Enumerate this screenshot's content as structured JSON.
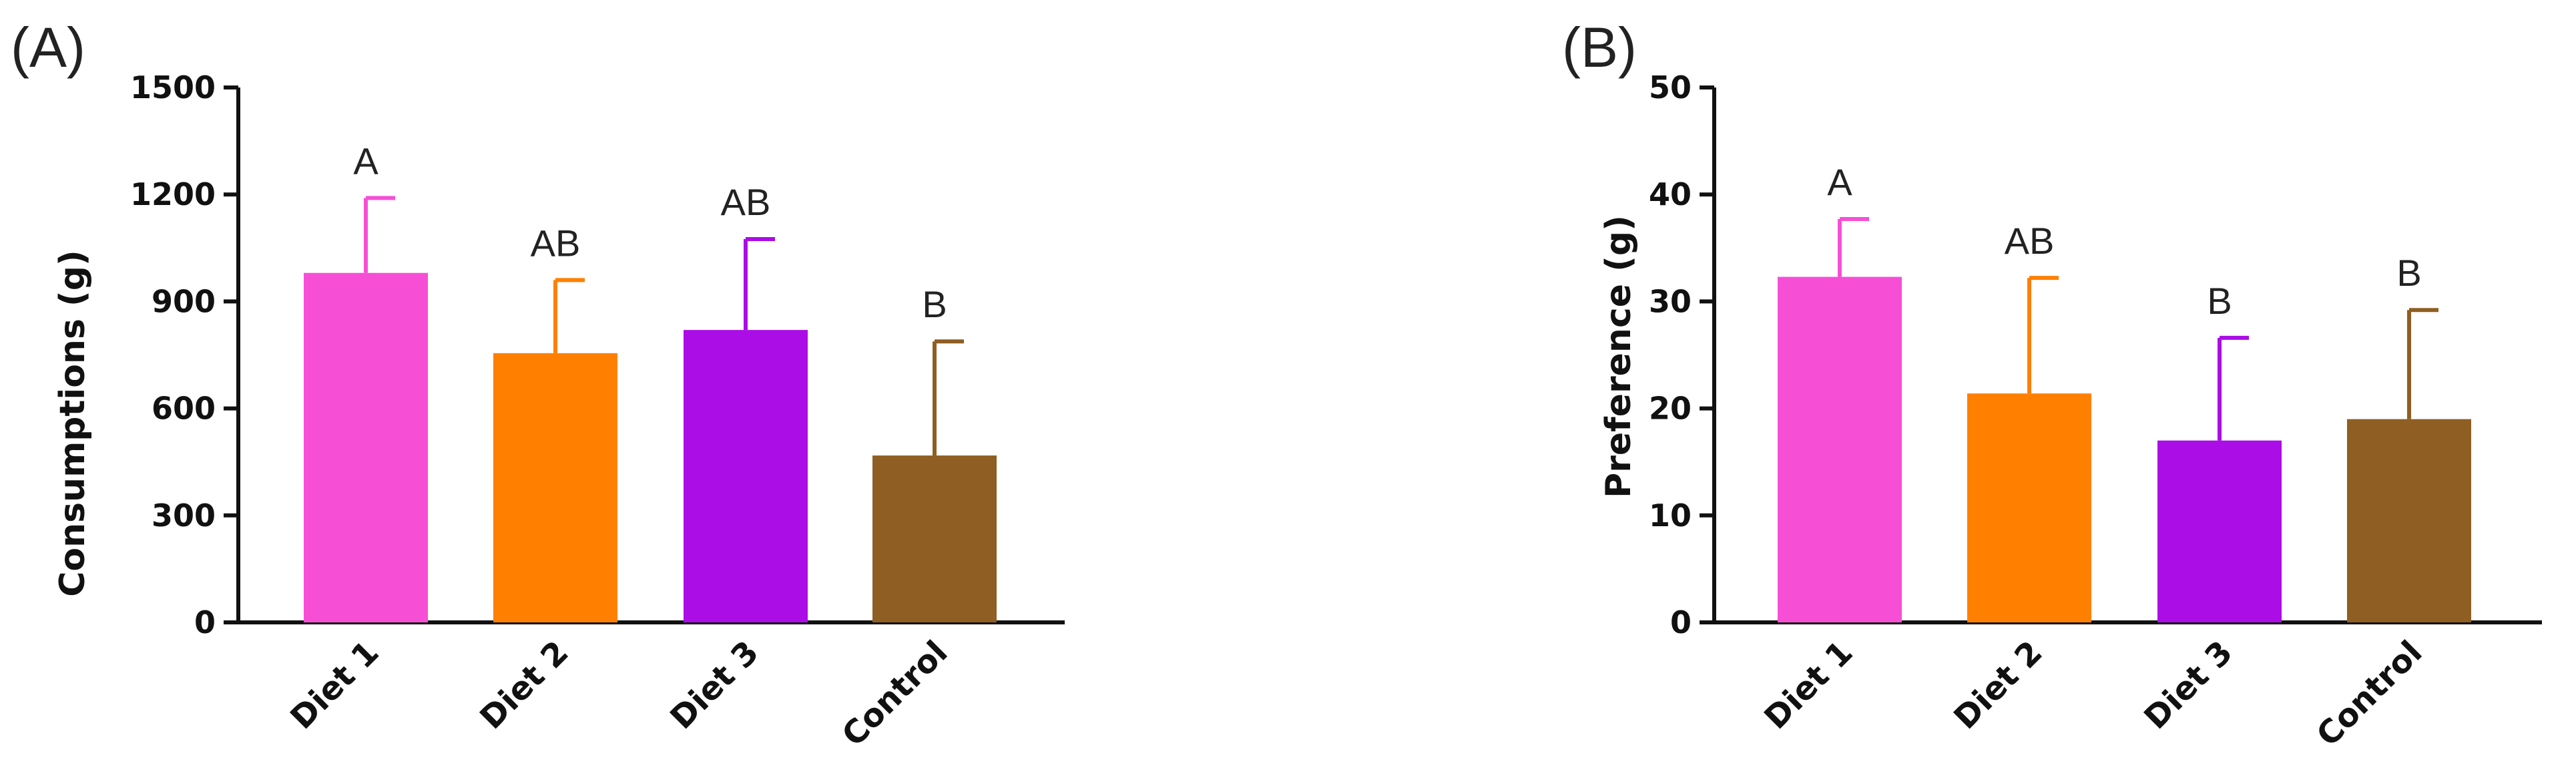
{
  "chart_data": [
    {
      "type": "bar",
      "panel_label": "(A)",
      "title": "",
      "xlabel": "",
      "ylabel": "Consumptions (g)",
      "ylim": [
        0,
        1500
      ],
      "yticks": [
        "0",
        "300",
        "600",
        "900",
        "1200",
        "1500"
      ],
      "categories": [
        "Diet 1",
        "Diet 2",
        "Diet 3",
        "Control"
      ],
      "values": [
        980,
        755,
        820,
        468
      ],
      "error": [
        210,
        205,
        255,
        320
      ],
      "significance": [
        "A",
        "AB",
        "AB",
        "B"
      ],
      "colors": [
        "#F64FD6",
        "#FF8000",
        "#AA0DE6",
        "#8E5E22"
      ],
      "grid": false,
      "legend": "none"
    },
    {
      "type": "bar",
      "panel_label": "(B)",
      "title": "",
      "xlabel": "",
      "ylabel": "Preference (g)",
      "ylim": [
        0,
        50
      ],
      "yticks": [
        "0",
        "10",
        "20",
        "30",
        "40",
        "50"
      ],
      "categories": [
        "Diet 1",
        "Diet 2",
        "Diet 3",
        "Control"
      ],
      "values": [
        32.3,
        21.4,
        17.0,
        19.0
      ],
      "error": [
        5.4,
        10.8,
        9.6,
        10.2
      ],
      "significance": [
        "A",
        "AB",
        "B",
        "B"
      ],
      "colors": [
        "#F64FD6",
        "#FF8000",
        "#AA0DE6",
        "#8E5E22"
      ],
      "grid": false,
      "legend": "none"
    }
  ]
}
